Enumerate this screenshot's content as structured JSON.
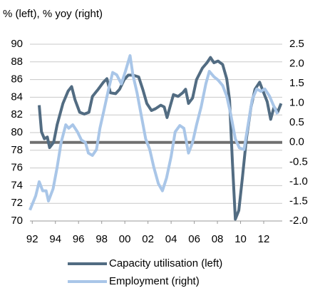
{
  "chart_data": {
    "type": "line",
    "title": "% (left), % yoy (right)",
    "xlim": [
      1991.8,
      2013.6
    ],
    "xticks": [
      {
        "value": 1992,
        "label": "92"
      },
      {
        "value": 1994,
        "label": "94"
      },
      {
        "value": 1996,
        "label": "96"
      },
      {
        "value": 1998,
        "label": "98"
      },
      {
        "value": 2000,
        "label": "00"
      },
      {
        "value": 2002,
        "label": "02"
      },
      {
        "value": 2004,
        "label": "04"
      },
      {
        "value": 2006,
        "label": "06"
      },
      {
        "value": 2008,
        "label": "08"
      },
      {
        "value": 2010,
        "label": "10"
      },
      {
        "value": 2012,
        "label": "12"
      }
    ],
    "ylim": [
      70,
      90
    ],
    "yticks": [
      70,
      72,
      74,
      76,
      78,
      80,
      82,
      84,
      86,
      88,
      90
    ],
    "y2lim": [
      -2.0,
      2.5
    ],
    "y2ticks": [
      {
        "value": -2,
        "label": "-2.0"
      },
      -1.5,
      {
        "value": -1,
        "label": "-1.0"
      },
      -0.5,
      {
        "value": 0,
        "label": "0.0"
      },
      0.5,
      {
        "value": 1,
        "label": "1.0"
      },
      1.5,
      {
        "value": 2,
        "label": "2.0"
      },
      2.5
    ],
    "grid": true,
    "zero_line": {
      "axis": "y2",
      "value": 0,
      "color": "#707070"
    },
    "legend": "bottom",
    "series": [
      {
        "name": "Capacity utilisation (left)",
        "color": "#526c82",
        "axis": "y",
        "x": [
          1992.6,
          1992.8,
          1993.05,
          1993.3,
          1993.5,
          1993.85,
          1994.15,
          1994.65,
          1995.1,
          1995.4,
          1995.7,
          1996.1,
          1996.5,
          1996.9,
          1997.2,
          1997.7,
          1998.15,
          1998.45,
          1998.75,
          1999.2,
          1999.55,
          1999.95,
          2000.3,
          2000.7,
          2001.2,
          2001.55,
          2001.9,
          2002.3,
          2002.65,
          2003.1,
          2003.4,
          2003.65,
          2003.9,
          2004.2,
          2004.6,
          2005.0,
          2005.25,
          2005.5,
          2005.85,
          2006.2,
          2006.7,
          2007.1,
          2007.4,
          2007.7,
          2008.05,
          2008.45,
          2008.8,
          2009.05,
          2009.3,
          2009.55,
          2009.85,
          2010.15,
          2010.5,
          2010.9,
          2011.25,
          2011.65,
          2012.0,
          2012.3,
          2012.6,
          2012.9,
          2013.2,
          2013.5
        ],
        "values": [
          83.1,
          80.1,
          79.3,
          79.5,
          78.3,
          78.9,
          80.9,
          83.3,
          84.7,
          85.2,
          83.7,
          82.3,
          82.1,
          82.3,
          84.1,
          84.9,
          85.7,
          86.1,
          84.5,
          84.4,
          84.9,
          86.0,
          86.5,
          86.5,
          86.3,
          84.9,
          83.3,
          82.5,
          82.7,
          83.1,
          82.9,
          81.7,
          82.9,
          84.3,
          84.1,
          84.5,
          84.9,
          83.3,
          83.9,
          86.0,
          87.3,
          87.9,
          88.5,
          87.9,
          88.1,
          87.7,
          86.1,
          83.7,
          76.5,
          70.2,
          71.2,
          74.8,
          79.3,
          82.9,
          84.9,
          85.7,
          84.5,
          83.5,
          81.5,
          82.9,
          82.3,
          83.3
        ]
      },
      {
        "name": "Employment (right)",
        "color": "#a9c6e8",
        "axis": "y2",
        "x": [
          1991.8,
          1992.3,
          1992.6,
          1992.9,
          1993.2,
          1993.4,
          1993.8,
          1994.15,
          1994.5,
          1994.9,
          1995.15,
          1995.5,
          1995.9,
          1996.25,
          1996.6,
          1996.85,
          1997.2,
          1997.55,
          1997.85,
          1998.2,
          1998.6,
          1998.95,
          1999.3,
          1999.7,
          2000.05,
          2000.45,
          2000.7,
          2001.05,
          2001.4,
          2001.8,
          2002.15,
          2002.5,
          2002.9,
          2003.25,
          2003.6,
          2004.0,
          2004.35,
          2004.75,
          2005.1,
          2005.5,
          2005.85,
          2006.2,
          2006.6,
          2007.0,
          2007.3,
          2007.7,
          2008.05,
          2008.45,
          2008.8,
          2009.15,
          2009.55,
          2009.9,
          2010.3,
          2010.65,
          2011.0,
          2011.4,
          2011.75,
          2012.1,
          2012.5,
          2012.85,
          2013.2
        ],
        "values": [
          -1.72,
          -1.36,
          -1.0,
          -1.23,
          -1.23,
          -1.49,
          -1.18,
          -0.63,
          0.0,
          0.45,
          0.36,
          0.45,
          0.27,
          0.06,
          0.0,
          -0.27,
          -0.33,
          -0.18,
          0.36,
          0.82,
          1.36,
          1.78,
          1.72,
          1.49,
          1.81,
          2.21,
          1.72,
          1.27,
          0.72,
          0.09,
          -0.18,
          -0.63,
          -1.05,
          -1.23,
          -0.91,
          -0.36,
          0.27,
          0.43,
          0.36,
          -0.27,
          0.0,
          0.45,
          0.91,
          1.49,
          1.81,
          1.67,
          1.59,
          1.45,
          1.18,
          0.72,
          0.09,
          -0.14,
          -0.18,
          0.45,
          1.09,
          1.36,
          1.3,
          1.36,
          1.18,
          0.94,
          0.72
        ]
      }
    ]
  }
}
